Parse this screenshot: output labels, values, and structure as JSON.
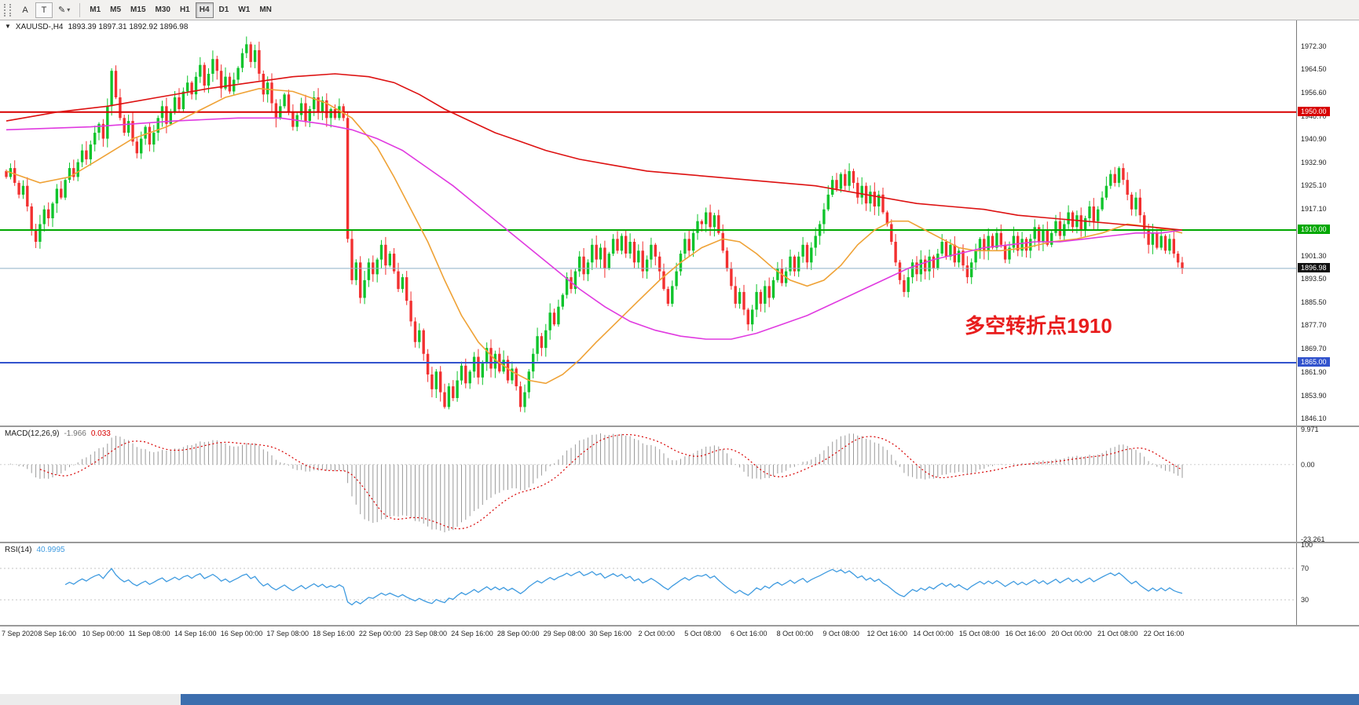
{
  "toolbar": {
    "icons": [
      {
        "name": "annotation-a-button",
        "glyph": "A"
      },
      {
        "name": "text-label-button",
        "glyph": "T"
      },
      {
        "name": "drawing-tools-button",
        "glyph": "✎",
        "dropdown": "▾"
      }
    ],
    "timeframes": [
      "M1",
      "M5",
      "M15",
      "M30",
      "H1",
      "H4",
      "D1",
      "W1",
      "MN"
    ],
    "active_timeframe": "H4"
  },
  "chart": {
    "header": {
      "collapse_icon": "▼",
      "symbol": "XAUUSD-,H4",
      "ohlc": "1893.39 1897.31 1892.92 1896.98"
    },
    "annotation": {
      "text": "多空转折点1910",
      "color": "#e81c1c"
    },
    "levels": [
      {
        "label": "1950.00",
        "price": 1950.0,
        "color": "#d80000"
      },
      {
        "label": "1910.00",
        "price": 1910.0,
        "color": "#00a800"
      },
      {
        "label": "1865.00",
        "price": 1865.0,
        "color": "#3253cd"
      }
    ],
    "current_price": {
      "label": "1896.98",
      "price": 1896.98,
      "line_color": "#8fb0c6",
      "badge_bg": "#111111"
    },
    "price_axis_labels": [
      "1972.30",
      "1964.50",
      "1956.60",
      "1948.70",
      "1940.90",
      "1932.90",
      "1925.10",
      "1917.10",
      "1901.30",
      "1893.50",
      "1885.50",
      "1877.70",
      "1869.70",
      "1861.90",
      "1853.90",
      "1846.10"
    ]
  },
  "chart_data": {
    "type": "candlestick",
    "symbol": "XAUUSD-",
    "timeframe": "H4",
    "ohlc_current": {
      "open": 1893.39,
      "high": 1897.31,
      "low": 1892.92,
      "close": 1896.98
    },
    "y_range": [
      1843.7,
      1981.1
    ],
    "open_first": 1930,
    "closes": [
      1928,
      1931,
      1926,
      1922,
      1925,
      1918,
      1910,
      1906,
      1912,
      1917,
      1914,
      1919,
      1924,
      1921,
      1927,
      1931,
      1928,
      1933,
      1937,
      1934,
      1939,
      1943,
      1946,
      1941,
      1952,
      1964,
      1955,
      1948,
      1943,
      1947,
      1940,
      1936,
      1941,
      1945,
      1939,
      1943,
      1948,
      1952,
      1946,
      1950,
      1955,
      1951,
      1957,
      1960,
      1956,
      1962,
      1966,
      1959,
      1963,
      1968,
      1964,
      1958,
      1962,
      1957,
      1961,
      1965,
      1970,
      1973,
      1967,
      1971,
      1963,
      1956,
      1960,
      1953,
      1948,
      1952,
      1956,
      1950,
      1945,
      1949,
      1953,
      1947,
      1951,
      1955,
      1950,
      1954,
      1948,
      1951,
      1948,
      1952,
      1948,
      1907,
      1893,
      1899,
      1887,
      1893,
      1899,
      1895,
      1900,
      1905,
      1898,
      1902,
      1896,
      1890,
      1894,
      1886,
      1879,
      1872,
      1876,
      1868,
      1861,
      1856,
      1862,
      1855,
      1850,
      1857,
      1853,
      1859,
      1864,
      1858,
      1862,
      1867,
      1860,
      1865,
      1870,
      1863,
      1868,
      1862,
      1866,
      1859,
      1863,
      1857,
      1850,
      1855,
      1862,
      1868,
      1874,
      1870,
      1876,
      1882,
      1878,
      1884,
      1888,
      1894,
      1890,
      1896,
      1901,
      1895,
      1899,
      1905,
      1900,
      1904,
      1897,
      1902,
      1907,
      1903,
      1908,
      1902,
      1906,
      1899,
      1903,
      1896,
      1900,
      1905,
      1901,
      1896,
      1890,
      1885,
      1891,
      1896,
      1902,
      1907,
      1903,
      1909,
      1913,
      1912,
      1916,
      1911,
      1915,
      1909,
      1903,
      1897,
      1891,
      1885,
      1889,
      1883,
      1878,
      1883,
      1889,
      1885,
      1891,
      1887,
      1893,
      1897,
      1892,
      1896,
      1901,
      1896,
      1901,
      1905,
      1899,
      1904,
      1908,
      1912,
      1917,
      1922,
      1927,
      1924,
      1929,
      1925,
      1930,
      1926,
      1921,
      1925,
      1919,
      1923,
      1918,
      1922,
      1916,
      1912,
      1906,
      1899,
      1893,
      1889,
      1894,
      1899,
      1895,
      1900,
      1896,
      1901,
      1897,
      1902,
      1906,
      1901,
      1905,
      1899,
      1903,
      1898,
      1894,
      1899,
      1903,
      1907,
      1903,
      1908,
      1904,
      1909,
      1905,
      1900,
      1904,
      1908,
      1903,
      1907,
      1903,
      1907,
      1911,
      1906,
      1910,
      1905,
      1909,
      1913,
      1908,
      1912,
      1916,
      1911,
      1915,
      1910,
      1914,
      1918,
      1913,
      1917,
      1921,
      1925,
      1929,
      1926,
      1931,
      1927,
      1922,
      1917,
      1921,
      1915,
      1910,
      1905,
      1909,
      1904,
      1908,
      1903,
      1907,
      1902,
      1899,
      1896.98
    ],
    "x_labels": [
      "7 Sep 2020",
      "8 Sep 16:00",
      "10 Sep 00:00",
      "11 Sep 08:00",
      "14 Sep 16:00",
      "16 Sep 00:00",
      "17 Sep 08:00",
      "18 Sep 16:00",
      "22 Sep 00:00",
      "23 Sep 08:00",
      "24 Sep 16:00",
      "28 Sep 00:00",
      "29 Sep 08:00",
      "30 Sep 16:00",
      "2 Oct 00:00",
      "5 Oct 08:00",
      "6 Oct 16:00",
      "8 Oct 00:00",
      "9 Oct 08:00",
      "12 Oct 16:00",
      "14 Oct 00:00",
      "15 Oct 08:00",
      "16 Oct 16:00",
      "20 Oct 00:00",
      "21 Oct 08:00",
      "22 Oct 16:00"
    ],
    "up_color": "#0fc42c",
    "down_color": "#f23030",
    "overlays": [
      {
        "name": "ma-fast",
        "color": "#efa236",
        "points": [
          [
            0,
            1930
          ],
          [
            8,
            1926
          ],
          [
            15,
            1928
          ],
          [
            22,
            1934
          ],
          [
            30,
            1941
          ],
          [
            38,
            1945
          ],
          [
            45,
            1950
          ],
          [
            52,
            1955
          ],
          [
            60,
            1958
          ],
          [
            68,
            1957
          ],
          [
            76,
            1953
          ],
          [
            82,
            1948
          ],
          [
            88,
            1938
          ],
          [
            92,
            1928
          ],
          [
            96,
            1917
          ],
          [
            100,
            1906
          ],
          [
            104,
            1893
          ],
          [
            108,
            1881
          ],
          [
            112,
            1872
          ],
          [
            116,
            1866
          ],
          [
            120,
            1862
          ],
          [
            124,
            1859
          ],
          [
            128,
            1858
          ],
          [
            132,
            1861
          ],
          [
            136,
            1866
          ],
          [
            140,
            1872
          ],
          [
            145,
            1879
          ],
          [
            150,
            1886
          ],
          [
            155,
            1893
          ],
          [
            160,
            1899
          ],
          [
            165,
            1904
          ],
          [
            170,
            1907
          ],
          [
            174,
            1906
          ],
          [
            178,
            1902
          ],
          [
            182,
            1897
          ],
          [
            186,
            1893
          ],
          [
            190,
            1891
          ],
          [
            194,
            1893
          ],
          [
            198,
            1898
          ],
          [
            202,
            1905
          ],
          [
            206,
            1910
          ],
          [
            210,
            1913
          ],
          [
            214,
            1913
          ],
          [
            218,
            1910
          ],
          [
            222,
            1907
          ],
          [
            226,
            1904
          ],
          [
            230,
            1903
          ],
          [
            236,
            1903
          ],
          [
            242,
            1904
          ],
          [
            248,
            1906
          ],
          [
            254,
            1907
          ],
          [
            260,
            1909
          ],
          [
            266,
            1912
          ],
          [
            272,
            1911
          ],
          [
            276,
            1910
          ],
          [
            279,
            1909
          ]
        ]
      },
      {
        "name": "ma-mid",
        "color": "#e03ae0",
        "points": [
          [
            0,
            1944
          ],
          [
            20,
            1945
          ],
          [
            40,
            1947
          ],
          [
            55,
            1948
          ],
          [
            65,
            1948
          ],
          [
            75,
            1946
          ],
          [
            82,
            1944
          ],
          [
            88,
            1941
          ],
          [
            94,
            1937
          ],
          [
            100,
            1931
          ],
          [
            106,
            1925
          ],
          [
            112,
            1918
          ],
          [
            118,
            1911
          ],
          [
            124,
            1904
          ],
          [
            130,
            1897
          ],
          [
            136,
            1890
          ],
          [
            142,
            1884
          ],
          [
            148,
            1879
          ],
          [
            154,
            1876
          ],
          [
            160,
            1874
          ],
          [
            166,
            1873
          ],
          [
            172,
            1873
          ],
          [
            178,
            1875
          ],
          [
            184,
            1878
          ],
          [
            190,
            1881
          ],
          [
            196,
            1885
          ],
          [
            202,
            1889
          ],
          [
            208,
            1893
          ],
          [
            214,
            1897
          ],
          [
            220,
            1900
          ],
          [
            226,
            1902
          ],
          [
            232,
            1904
          ],
          [
            238,
            1905
          ],
          [
            244,
            1906
          ],
          [
            250,
            1906
          ],
          [
            256,
            1907
          ],
          [
            262,
            1908
          ],
          [
            268,
            1909
          ],
          [
            274,
            1909
          ],
          [
            279,
            1910
          ]
        ]
      },
      {
        "name": "ma-slow",
        "color": "#dd1111",
        "points": [
          [
            0,
            1947
          ],
          [
            12,
            1950
          ],
          [
            24,
            1952
          ],
          [
            36,
            1955
          ],
          [
            48,
            1958
          ],
          [
            58,
            1960
          ],
          [
            68,
            1962
          ],
          [
            78,
            1963
          ],
          [
            86,
            1962
          ],
          [
            92,
            1960
          ],
          [
            98,
            1956
          ],
          [
            104,
            1951
          ],
          [
            110,
            1947
          ],
          [
            116,
            1943
          ],
          [
            122,
            1940
          ],
          [
            128,
            1937
          ],
          [
            136,
            1934
          ],
          [
            144,
            1932
          ],
          [
            152,
            1930
          ],
          [
            160,
            1929
          ],
          [
            168,
            1928
          ],
          [
            176,
            1927
          ],
          [
            184,
            1926
          ],
          [
            192,
            1925
          ],
          [
            200,
            1923
          ],
          [
            208,
            1921
          ],
          [
            216,
            1919
          ],
          [
            224,
            1918
          ],
          [
            232,
            1917
          ],
          [
            240,
            1915
          ],
          [
            248,
            1914
          ],
          [
            256,
            1913
          ],
          [
            264,
            1912
          ],
          [
            272,
            1911
          ],
          [
            279,
            1910
          ]
        ]
      }
    ]
  },
  "macd": {
    "title": "MACD(12,26,9)",
    "main_value": "-1.966",
    "signal_value": "0.033",
    "axis_labels": [
      "9.971",
      "0.00",
      "-23.261"
    ],
    "hist_color": "#9a9a9a",
    "signal_color": "#d80000",
    "params": {
      "fast": 12,
      "slow": 26,
      "signal": 9
    }
  },
  "rsi": {
    "title": "RSI(14)",
    "value": "40.9995",
    "axis_labels": [
      "100",
      "70",
      "30"
    ],
    "levels": [
      70,
      30
    ],
    "period": 14,
    "line_color": "#3f9be0"
  },
  "bottom_bar": {
    "color": "#3c6eae"
  }
}
